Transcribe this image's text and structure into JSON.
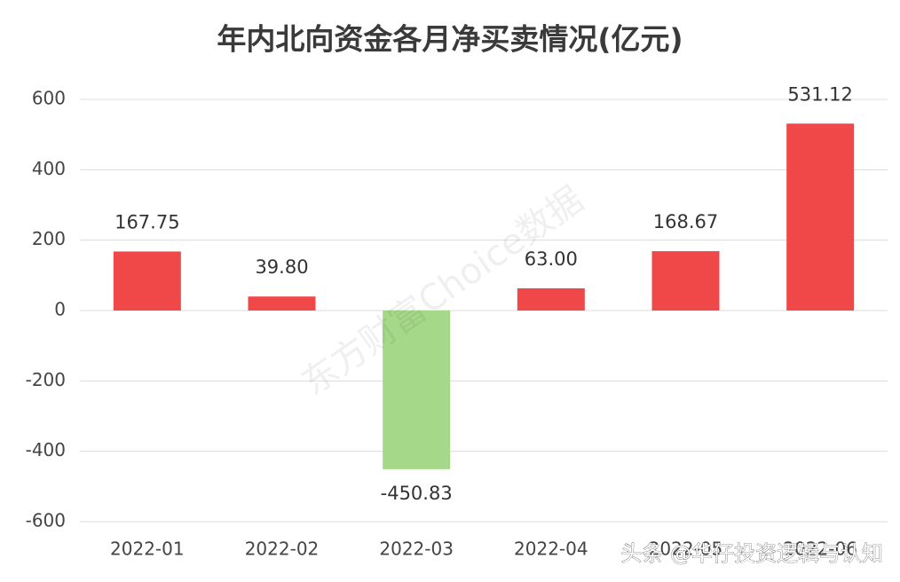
{
  "chart_data": {
    "type": "bar",
    "title": "年内北向资金各月净买卖情况(亿元)",
    "categories": [
      "2022-01",
      "2022-02",
      "2022-03",
      "2022-04",
      "2022-05",
      "2022-06"
    ],
    "values": [
      167.75,
      39.8,
      -450.83,
      63,
      168.67,
      531.12
    ],
    "value_labels": [
      "167.75",
      "39.80",
      "-450.83",
      "63.00",
      "168.67",
      "531.12"
    ],
    "positive_color": "#f04848",
    "negative_color": "#a6d88a",
    "ylim": [
      -600,
      600
    ],
    "yticks": [
      -600,
      -400,
      -200,
      0,
      200,
      400,
      600
    ],
    "grid": true,
    "watermarks": [
      "东方财富Choice数据",
      "头条 @华仔投资逻辑与认知"
    ]
  }
}
